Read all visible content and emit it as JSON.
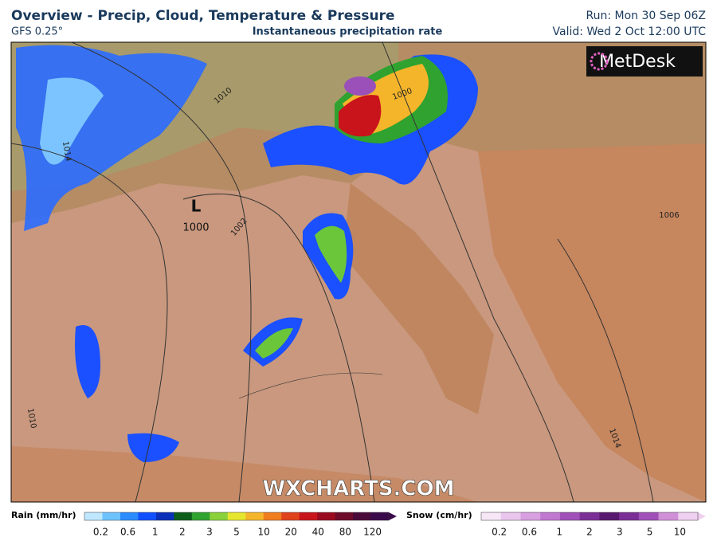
{
  "header": {
    "title": "Overview - Precip, Cloud, Temperature & Pressure",
    "model": "GFS 0.25°",
    "subtitle": "Instantaneous precipitation rate",
    "run": "Run: Mon 30 Sep 06Z",
    "valid": "Valid: Wed 2 Oct 12:00 UTC"
  },
  "map": {
    "logo": "MetDesk",
    "watermark": "WXCHARTS.COM",
    "low_marker": "L",
    "low_value": "1000",
    "isobar_labels": [
      "1010",
      "1014",
      "1002",
      "1000",
      "1006",
      "1010",
      "1014"
    ]
  },
  "legend": {
    "rain": {
      "label": "Rain (mm/hr)",
      "ticks": [
        0.2,
        0.6,
        1,
        2,
        3,
        5,
        10,
        20,
        40,
        80,
        120
      ],
      "colors": [
        "#bfe8ff",
        "#6ec3ff",
        "#2a8cff",
        "#1050ff",
        "#0a2fb8",
        "#0d5e1a",
        "#2fa22f",
        "#8ad13a",
        "#e6e62e",
        "#f5b52a",
        "#f07d1e",
        "#e0421a",
        "#c8141a",
        "#9a0a1e",
        "#6e0a2a",
        "#4a0a3a",
        "#3a0a4a"
      ]
    },
    "snow": {
      "label": "Snow (cm/hr)",
      "ticks": [
        0.2,
        0.6,
        1,
        2,
        3,
        5,
        10
      ],
      "colors": [
        "#f6e6f6",
        "#eac6ee",
        "#d8a0e0",
        "#c078d0",
        "#a050b8",
        "#7a2e96",
        "#58186e",
        "#7a2e96",
        "#a050b8",
        "#d090d8",
        "#f0d0f0"
      ]
    }
  }
}
